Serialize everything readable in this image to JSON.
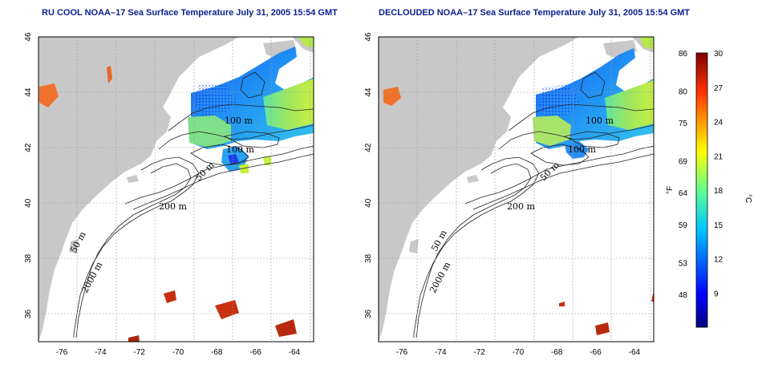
{
  "titles": {
    "left": "RU COOL NOAA–17 Sea Surface Temperature July 31, 2005 15:54 GMT",
    "right": "DECLOUDED NOAA–17 Sea Surface Temperature July 31, 2005 15:54 GMT"
  },
  "axes": {
    "lon_ticks": [
      -76,
      -74,
      -72,
      -70,
      -68,
      -66,
      -64
    ],
    "lon_range": [
      -77.2,
      -63
    ],
    "lat_ticks": [
      36,
      38,
      40,
      42,
      44,
      46
    ],
    "lat_range": [
      35,
      46
    ]
  },
  "contour_labels": {
    "m200": "200 m",
    "m100": "100 m",
    "m50": "50 m",
    "m2000": "2000 m"
  },
  "colorbar": {
    "unit_f": "°F",
    "unit_c": "°C",
    "f_labels": [
      "86",
      "80",
      "75",
      "69",
      "64",
      "59",
      "53",
      "48"
    ],
    "c_labels": [
      "30",
      "27",
      "24",
      "21",
      "18",
      "15",
      "12",
      "9"
    ],
    "range_c": [
      6,
      30
    ],
    "colors": [
      "#00007f",
      "#0000ff",
      "#007fff",
      "#00ffff",
      "#7fff7f",
      "#ffff00",
      "#ff7f00",
      "#ff0000",
      "#7f0000"
    ]
  },
  "colors": {
    "land": "#c8c8c8",
    "ocean": "#ffffff",
    "title": "#0a1f8f"
  }
}
